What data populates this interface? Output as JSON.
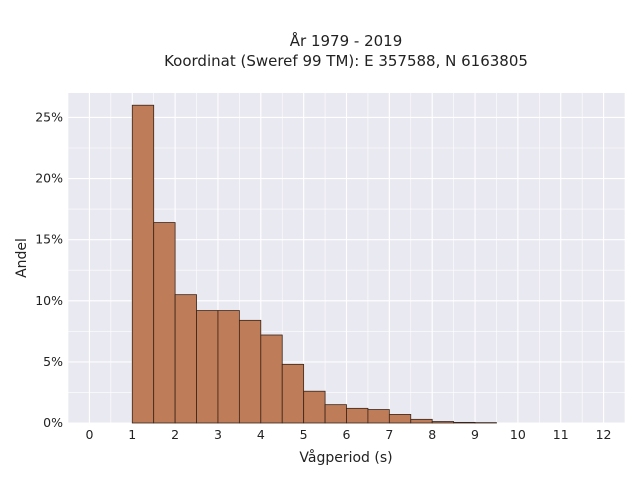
{
  "chart_data": {
    "type": "bar",
    "title_line1": "År 1979 - 2019",
    "title_line2": "Koordinat (Sweref 99 TM): E 357588, N 6163805",
    "xlabel": "Vågperiod (s)",
    "ylabel": "Andel",
    "xlim": [
      -0.5,
      12.5
    ],
    "ylim": [
      0,
      0.27
    ],
    "x_ticks": [
      0,
      1,
      2,
      3,
      4,
      5,
      6,
      7,
      8,
      9,
      10,
      11,
      12
    ],
    "y_ticks": [
      0,
      0.05,
      0.1,
      0.15,
      0.2,
      0.25
    ],
    "y_tick_labels": [
      "0%",
      "5%",
      "10%",
      "15%",
      "20%",
      "25%"
    ],
    "grid": true,
    "bin_width": 0.5,
    "bins": [
      {
        "x0": 1.0,
        "value": 0.26
      },
      {
        "x0": 1.5,
        "value": 0.164
      },
      {
        "x0": 2.0,
        "value": 0.105
      },
      {
        "x0": 2.5,
        "value": 0.092
      },
      {
        "x0": 3.0,
        "value": 0.092
      },
      {
        "x0": 3.5,
        "value": 0.084
      },
      {
        "x0": 4.0,
        "value": 0.072
      },
      {
        "x0": 4.5,
        "value": 0.048
      },
      {
        "x0": 5.0,
        "value": 0.026
      },
      {
        "x0": 5.5,
        "value": 0.015
      },
      {
        "x0": 6.0,
        "value": 0.012
      },
      {
        "x0": 6.5,
        "value": 0.011
      },
      {
        "x0": 7.0,
        "value": 0.007
      },
      {
        "x0": 7.5,
        "value": 0.003
      },
      {
        "x0": 8.0,
        "value": 0.0012
      },
      {
        "x0": 8.5,
        "value": 0.0005
      },
      {
        "x0": 9.0,
        "value": 0.0003
      }
    ],
    "colors": {
      "bar_fill": "#be7c58",
      "bar_stroke": "#3a2418",
      "plot_bg": "#e9e9f1",
      "grid": "#ffffff"
    }
  }
}
